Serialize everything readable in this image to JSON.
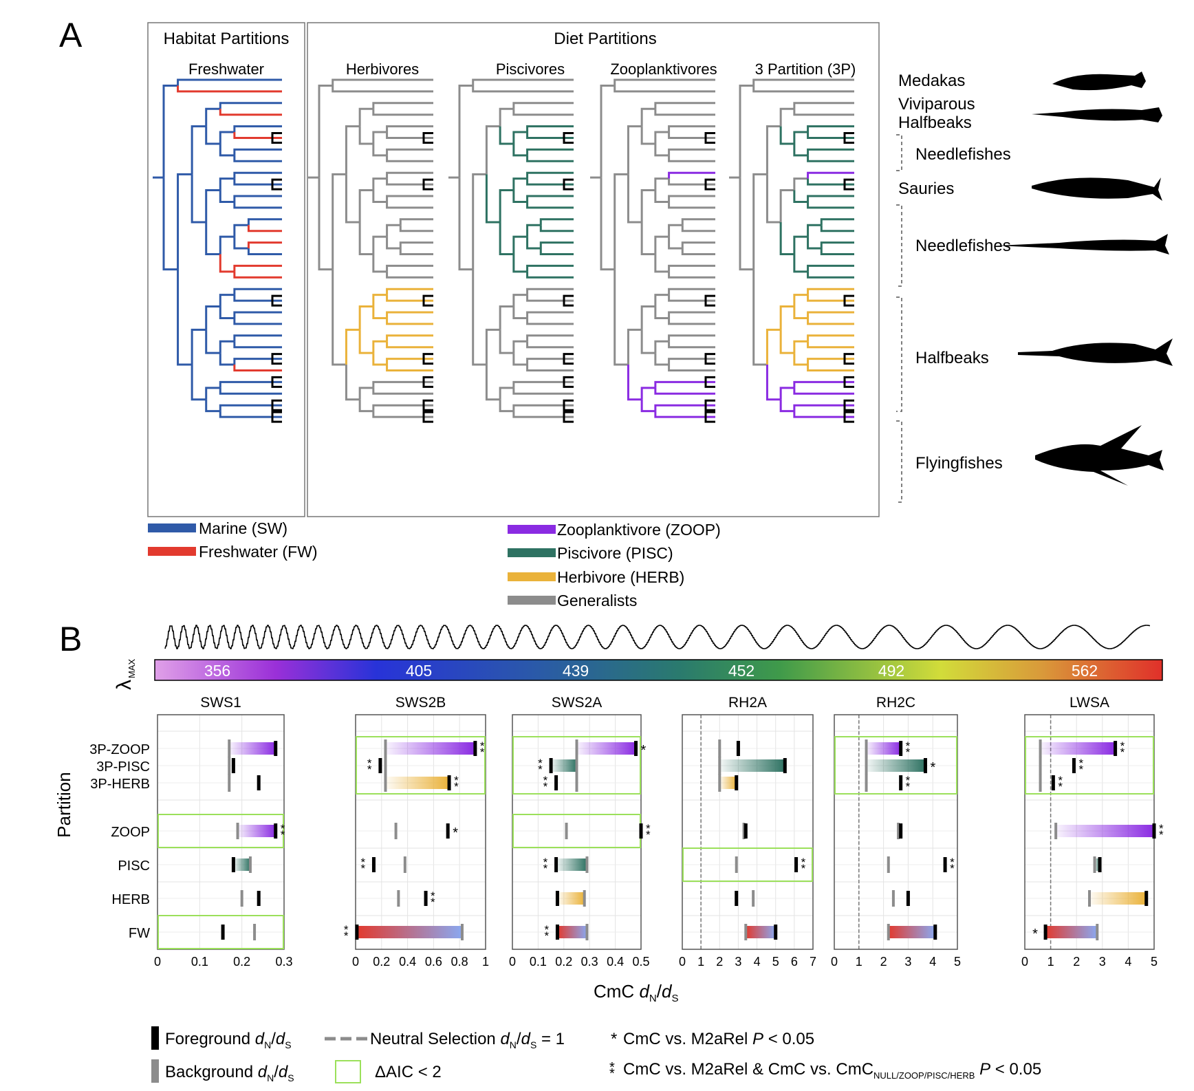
{
  "panel_labels": {
    "a": "A",
    "b": "B"
  },
  "panel_a": {
    "habitat_title": "Habitat Partitions",
    "diet_title": "Diet Partitions",
    "tree_labels": [
      "Freshwater",
      "Herbivores",
      "Piscivores",
      "Zooplanktivores",
      "3 Partition (3P)"
    ],
    "clades": [
      "Medakas",
      "Viviparous",
      "Halfbeaks",
      "Needlefishes",
      "Sauries",
      "Needlefishes",
      "Halfbeaks",
      "Flyingfishes"
    ],
    "legend_habitat": [
      "Marine (SW)",
      "Freshwater (FW)"
    ],
    "legend_diet": [
      "Zooplanktivore (ZOOP)",
      "Piscivore (PISC)",
      "Herbivore (HERB)",
      "Generalists"
    ]
  },
  "colors": {
    "marine": "#2f5aa8",
    "freshwater": "#e23a2e",
    "zoop": "#8a2be2",
    "pisc": "#2e7262",
    "herb": "#eab23a",
    "generalist": "#8c8c8c",
    "foreground": "#000000",
    "background": "#8c8c8c",
    "aic_box": "#9be05a"
  },
  "panel_b": {
    "lambda_label": "λ",
    "lambda_sub": "MAX",
    "spectrum_ticks": [
      "356",
      "405",
      "439",
      "452",
      "492",
      "562"
    ],
    "y_axis_label": "Partition",
    "x_axis_label": "CmC ",
    "x_axis_label_suffix": "/",
    "x_axis_label_dn": "d",
    "x_axis_label_dn_sub": "N",
    "x_axis_label_ds": "d",
    "x_axis_label_ds_sub": "S"
  },
  "legend_b": {
    "foreground": "Foreground ",
    "background": "Background ",
    "dnds": "d",
    "dnds_n": "N",
    "dnds_s": "S",
    "neutral": "Neutral Selection ",
    "neutral_eq": "= 1",
    "aic": "ΔAIC < 2",
    "single_star": "CmC vs. M2aRel ",
    "p_lt": "< 0.05",
    "P": "P",
    "double_star": "CmC vs. M2aRel & CmC vs. CmC",
    "double_star_sub": "NULL/ZOOP/PISC/HERB"
  },
  "chart_data": {
    "type": "dot-range",
    "x_label": "CmC dN/dS",
    "y_label": "Partition",
    "categories": [
      "3P-ZOOP",
      "3P-PISC",
      "3P-HERB",
      "ZOOP",
      "PISC",
      "HERB",
      "FW"
    ],
    "series_fields": [
      "foreground dN/dS",
      "background dN/dS",
      "significance"
    ],
    "panels": [
      {
        "gene": "SWS1",
        "xlim": [
          0,
          0.3
        ],
        "ticks": [
          "0",
          "0.1",
          "0.2",
          "0.3"
        ],
        "neutral_line": false,
        "aic_boxes": [
          "ZOOP",
          "FW"
        ],
        "rows": [
          {
            "cat": "3P-ZOOP",
            "fg": 0.28,
            "bg": 0.17,
            "color": "zoop",
            "sig": ""
          },
          {
            "cat": "3P-PISC",
            "fg": 0.18,
            "bg": 0.17,
            "color": "",
            "sig": ""
          },
          {
            "cat": "3P-HERB",
            "fg": 0.24,
            "bg": 0.17,
            "color": "",
            "sig": ""
          },
          {
            "cat": "ZOOP",
            "fg": 0.28,
            "bg": 0.19,
            "color": "zoop",
            "sig": "**"
          },
          {
            "cat": "PISC",
            "fg": 0.18,
            "bg": 0.22,
            "color": "pisc",
            "sig": ""
          },
          {
            "cat": "HERB",
            "fg": 0.24,
            "bg": 0.2,
            "color": "",
            "sig": ""
          },
          {
            "cat": "FW",
            "fg": 0.155,
            "bg": 0.23,
            "color": "",
            "sig": ""
          }
        ]
      },
      {
        "gene": "SWS2B",
        "xlim": [
          0,
          1
        ],
        "ticks": [
          "0",
          "0.2",
          "0.4",
          "0.6",
          "0.8",
          "1"
        ],
        "neutral_line": false,
        "aic_boxes": [
          "3P"
        ],
        "rows": [
          {
            "cat": "3P-ZOOP",
            "fg": 0.92,
            "bg": 0.23,
            "color": "zoop",
            "sig": "**"
          },
          {
            "cat": "3P-PISC",
            "fg": 0.19,
            "bg": 0.23,
            "color": "",
            "sig": "**"
          },
          {
            "cat": "3P-HERB",
            "fg": 0.72,
            "bg": 0.23,
            "color": "herb",
            "sig": "**"
          },
          {
            "cat": "ZOOP",
            "fg": 0.71,
            "bg": 0.31,
            "color": "",
            "sig": "*"
          },
          {
            "cat": "PISC",
            "fg": 0.14,
            "bg": 0.38,
            "color": "",
            "sig": "**"
          },
          {
            "cat": "HERB",
            "fg": 0.54,
            "bg": 0.33,
            "color": "",
            "sig": "**"
          },
          {
            "cat": "FW",
            "fg": 0.01,
            "bg": 0.82,
            "color": "fw",
            "sig": "**"
          }
        ]
      },
      {
        "gene": "SWS2A",
        "xlim": [
          0,
          0.5
        ],
        "ticks": [
          "0",
          "0.1",
          "0.2",
          "0.3",
          "0.4",
          "0.5"
        ],
        "neutral_line": false,
        "aic_boxes": [
          "3P",
          "ZOOP"
        ],
        "rows": [
          {
            "cat": "3P-ZOOP",
            "fg": 0.48,
            "bg": 0.25,
            "color": "zoop",
            "sig": "*"
          },
          {
            "cat": "3P-PISC",
            "fg": 0.15,
            "bg": 0.25,
            "color": "pisc",
            "sig": "**"
          },
          {
            "cat": "3P-HERB",
            "fg": 0.17,
            "bg": 0.25,
            "color": "",
            "sig": "**"
          },
          {
            "cat": "ZOOP",
            "fg": 0.5,
            "bg": 0.21,
            "color": "",
            "sig": "**"
          },
          {
            "cat": "PISC",
            "fg": 0.17,
            "bg": 0.29,
            "color": "pisc",
            "sig": "**"
          },
          {
            "cat": "HERB",
            "fg": 0.175,
            "bg": 0.28,
            "color": "herb",
            "sig": ""
          },
          {
            "cat": "FW",
            "fg": 0.175,
            "bg": 0.29,
            "color": "fw",
            "sig": "**"
          }
        ]
      },
      {
        "gene": "RH2A",
        "xlim": [
          0,
          7
        ],
        "ticks": [
          "0",
          "1",
          "2",
          "3",
          "4",
          "5",
          "6",
          "7"
        ],
        "neutral_line": true,
        "aic_boxes": [
          "PISC"
        ],
        "rows": [
          {
            "cat": "3P-ZOOP",
            "fg": 3.0,
            "bg": 2.0,
            "color": "",
            "sig": ""
          },
          {
            "cat": "3P-PISC",
            "fg": 5.5,
            "bg": 2.0,
            "color": "pisc",
            "sig": ""
          },
          {
            "cat": "3P-HERB",
            "fg": 2.9,
            "bg": 2.0,
            "color": "herb",
            "sig": ""
          },
          {
            "cat": "ZOOP",
            "fg": 3.4,
            "bg": 3.3,
            "color": "",
            "sig": ""
          },
          {
            "cat": "PISC",
            "fg": 6.1,
            "bg": 2.9,
            "color": "",
            "sig": "**"
          },
          {
            "cat": "HERB",
            "fg": 2.9,
            "bg": 3.8,
            "color": "",
            "sig": ""
          },
          {
            "cat": "FW",
            "fg": 5.0,
            "bg": 3.4,
            "color": "fw",
            "sig": ""
          }
        ]
      },
      {
        "gene": "RH2C",
        "xlim": [
          0,
          5
        ],
        "ticks": [
          "0",
          "1",
          "2",
          "3",
          "4",
          "5"
        ],
        "neutral_line": true,
        "aic_boxes": [
          "3P"
        ],
        "rows": [
          {
            "cat": "3P-ZOOP",
            "fg": 2.7,
            "bg": 1.3,
            "color": "zoop",
            "sig": "**"
          },
          {
            "cat": "3P-PISC",
            "fg": 3.7,
            "bg": 1.3,
            "color": "pisc",
            "sig": "*"
          },
          {
            "cat": "3P-HERB",
            "fg": 2.7,
            "bg": 1.3,
            "color": "",
            "sig": "**"
          },
          {
            "cat": "ZOOP",
            "fg": 2.7,
            "bg": 2.6,
            "color": "",
            "sig": ""
          },
          {
            "cat": "PISC",
            "fg": 4.5,
            "bg": 2.2,
            "color": "",
            "sig": "**"
          },
          {
            "cat": "HERB",
            "fg": 3.0,
            "bg": 2.4,
            "color": "",
            "sig": ""
          },
          {
            "cat": "FW",
            "fg": 4.1,
            "bg": 2.2,
            "color": "fw",
            "sig": ""
          }
        ]
      },
      {
        "gene": "LWSA",
        "xlim": [
          0,
          5
        ],
        "ticks": [
          "0",
          "1",
          "2",
          "3",
          "4",
          "5"
        ],
        "neutral_line": true,
        "aic_boxes": [
          "3P"
        ],
        "rows": [
          {
            "cat": "3P-ZOOP",
            "fg": 3.5,
            "bg": 0.6,
            "color": "zoop",
            "sig": "**"
          },
          {
            "cat": "3P-PISC",
            "fg": 1.9,
            "bg": 0.6,
            "color": "",
            "sig": "**"
          },
          {
            "cat": "3P-HERB",
            "fg": 1.1,
            "bg": 0.6,
            "color": "",
            "sig": "**"
          },
          {
            "cat": "ZOOP",
            "fg": 5.0,
            "bg": 1.2,
            "color": "zoop",
            "sig": "**"
          },
          {
            "cat": "PISC",
            "fg": 2.9,
            "bg": 2.7,
            "color": "pisc",
            "sig": ""
          },
          {
            "cat": "HERB",
            "fg": 4.7,
            "bg": 2.5,
            "color": "herb",
            "sig": ""
          },
          {
            "cat": "FW",
            "fg": 0.8,
            "bg": 2.8,
            "color": "fw",
            "sig": "*"
          }
        ]
      }
    ]
  }
}
